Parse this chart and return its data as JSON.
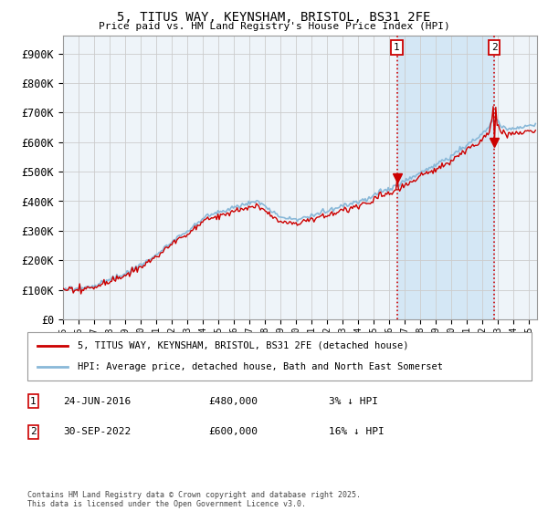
{
  "title_line1": "5, TITUS WAY, KEYNSHAM, BRISTOL, BS31 2FE",
  "title_line2": "Price paid vs. HM Land Registry's House Price Index (HPI)",
  "ylabel_vals": [
    0,
    100000,
    200000,
    300000,
    400000,
    500000,
    600000,
    700000,
    800000,
    900000
  ],
  "ylabel_labels": [
    "£0",
    "£100K",
    "£200K",
    "£300K",
    "£400K",
    "£500K",
    "£600K",
    "£700K",
    "£800K",
    "£900K"
  ],
  "ylim": [
    0,
    960000
  ],
  "xlim_start": 1995.0,
  "xlim_end": 2025.5,
  "hpi_color": "#89b8d8",
  "price_color": "#cc0000",
  "vline_color": "#cc0000",
  "grid_color": "#cccccc",
  "bg_color": "#eef4f9",
  "shade_color": "#d0e5f5",
  "sale1_x": 2016.48,
  "sale1_y": 480000,
  "sale2_x": 2022.75,
  "sale2_y": 600000,
  "legend_line1": "5, TITUS WAY, KEYNSHAM, BRISTOL, BS31 2FE (detached house)",
  "legend_line2": "HPI: Average price, detached house, Bath and North East Somerset",
  "annotation1_label": "1",
  "annotation1_date": "24-JUN-2016",
  "annotation1_price": "£480,000",
  "annotation1_hpi": "3% ↓ HPI",
  "annotation2_label": "2",
  "annotation2_date": "30-SEP-2022",
  "annotation2_price": "£600,000",
  "annotation2_hpi": "16% ↓ HPI",
  "footer": "Contains HM Land Registry data © Crown copyright and database right 2025.\nThis data is licensed under the Open Government Licence v3.0.",
  "xtick_years": [
    1995,
    1996,
    1997,
    1998,
    1999,
    2000,
    2001,
    2002,
    2003,
    2004,
    2005,
    2006,
    2007,
    2008,
    2009,
    2010,
    2011,
    2012,
    2013,
    2014,
    2015,
    2016,
    2017,
    2018,
    2019,
    2020,
    2021,
    2022,
    2023,
    2024,
    2025
  ]
}
